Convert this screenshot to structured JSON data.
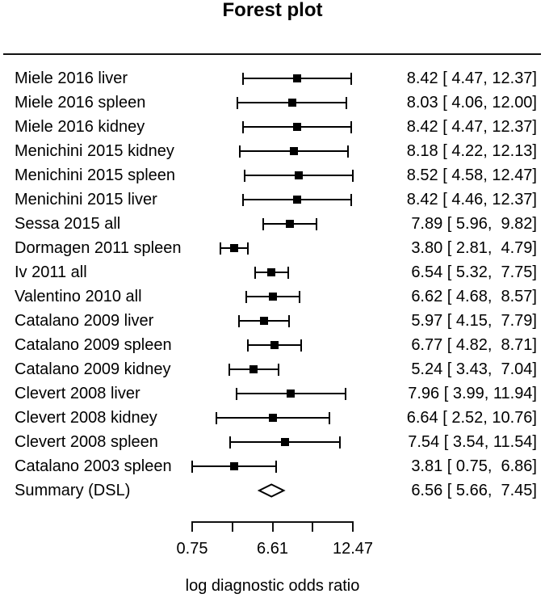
{
  "chart_data": {
    "type": "forest",
    "title": "Forest plot",
    "xlabel": "log diagnostic odds ratio",
    "xlim": [
      0.75,
      12.47
    ],
    "x_ticks": [
      0.75,
      3.68,
      6.61,
      9.54,
      12.47
    ],
    "x_tick_labels": [
      "0.75",
      "",
      "6.61",
      "",
      "12.47"
    ],
    "estimate_column_format": "estimate [ ci_low, ci_high]",
    "studies": [
      {
        "label": "Miele 2016 liver",
        "estimate": 8.42,
        "ci_low": 4.47,
        "ci_high": 12.37,
        "display": "8.42 [ 4.47, 12.37]"
      },
      {
        "label": "Miele 2016 spleen",
        "estimate": 8.03,
        "ci_low": 4.06,
        "ci_high": 12.0,
        "display": "8.03 [ 4.06, 12.00]"
      },
      {
        "label": "Miele 2016 kidney",
        "estimate": 8.42,
        "ci_low": 4.47,
        "ci_high": 12.37,
        "display": "8.42 [ 4.47, 12.37]"
      },
      {
        "label": "Menichini 2015 kidney",
        "estimate": 8.18,
        "ci_low": 4.22,
        "ci_high": 12.13,
        "display": "8.18 [ 4.22, 12.13]"
      },
      {
        "label": "Menichini 2015 spleen",
        "estimate": 8.52,
        "ci_low": 4.58,
        "ci_high": 12.47,
        "display": "8.52 [ 4.58, 12.47]"
      },
      {
        "label": "Menichini 2015 liver",
        "estimate": 8.42,
        "ci_low": 4.46,
        "ci_high": 12.37,
        "display": "8.42 [ 4.46, 12.37]"
      },
      {
        "label": "Sessa 2015 all",
        "estimate": 7.89,
        "ci_low": 5.96,
        "ci_high": 9.82,
        "display": "7.89 [ 5.96,  9.82]"
      },
      {
        "label": "Dormagen 2011 spleen",
        "estimate": 3.8,
        "ci_low": 2.81,
        "ci_high": 4.79,
        "display": "3.80 [ 2.81,  4.79]"
      },
      {
        "label": "Iv 2011 all",
        "estimate": 6.54,
        "ci_low": 5.32,
        "ci_high": 7.75,
        "display": "6.54 [ 5.32,  7.75]"
      },
      {
        "label": "Valentino 2010 all",
        "estimate": 6.62,
        "ci_low": 4.68,
        "ci_high": 8.57,
        "display": "6.62 [ 4.68,  8.57]"
      },
      {
        "label": "Catalano 2009 liver",
        "estimate": 5.97,
        "ci_low": 4.15,
        "ci_high": 7.79,
        "display": "5.97 [ 4.15,  7.79]"
      },
      {
        "label": "Catalano 2009 spleen",
        "estimate": 6.77,
        "ci_low": 4.82,
        "ci_high": 8.71,
        "display": "6.77 [ 4.82,  8.71]"
      },
      {
        "label": "Catalano 2009 kidney",
        "estimate": 5.24,
        "ci_low": 3.43,
        "ci_high": 7.04,
        "display": "5.24 [ 3.43,  7.04]"
      },
      {
        "label": "Clevert 2008 liver",
        "estimate": 7.96,
        "ci_low": 3.99,
        "ci_high": 11.94,
        "display": "7.96 [ 3.99, 11.94]"
      },
      {
        "label": "Clevert 2008 kidney",
        "estimate": 6.64,
        "ci_low": 2.52,
        "ci_high": 10.76,
        "display": "6.64 [ 2.52, 10.76]"
      },
      {
        "label": "Clevert 2008 spleen",
        "estimate": 7.54,
        "ci_low": 3.54,
        "ci_high": 11.54,
        "display": "7.54 [ 3.54, 11.54]"
      },
      {
        "label": "Catalano 2003 spleen",
        "estimate": 3.81,
        "ci_low": 0.75,
        "ci_high": 6.86,
        "display": "3.81 [ 0.75,  6.86]"
      }
    ],
    "summary": {
      "label": "Summary (DSL)",
      "estimate": 6.56,
      "ci_low": 5.66,
      "ci_high": 7.45,
      "display": "6.56 [ 5.66,  7.45]"
    },
    "colors": {
      "foreground": "#000000",
      "background": "#ffffff"
    }
  }
}
